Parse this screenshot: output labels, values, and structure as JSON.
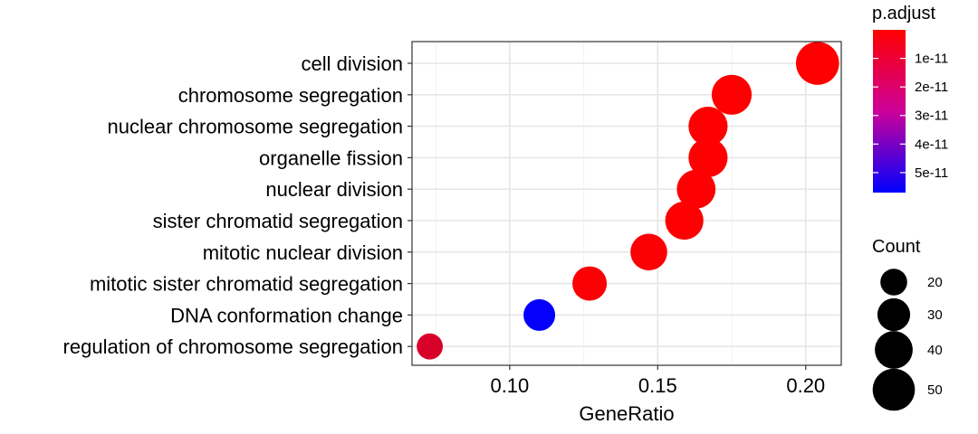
{
  "chart_data": {
    "type": "scatter",
    "title": "",
    "xlabel": "GeneRatio",
    "ylabel": "",
    "xlim": [
      0.067,
      0.212
    ],
    "x_ticks": [
      0.1,
      0.15,
      0.2
    ],
    "x_tick_labels": [
      "0.10",
      "0.15",
      "0.20"
    ],
    "grid": true,
    "categories": [
      "cell division",
      "chromosome segregation",
      "nuclear chromosome segregation",
      "organelle fission",
      "nuclear division",
      "sister chromatid segregation",
      "mitotic nuclear division",
      "mitotic sister chromatid segregation",
      "DNA conformation change",
      "regulation of chromosome segregation"
    ],
    "points": [
      {
        "term": "cell division",
        "gene_ratio": 0.204,
        "count": 52,
        "p_adjust": 1e-13
      },
      {
        "term": "chromosome segregation",
        "gene_ratio": 0.175,
        "count": 45,
        "p_adjust": 2e-13
      },
      {
        "term": "nuclear chromosome segregation",
        "gene_ratio": 0.167,
        "count": 43,
        "p_adjust": 2e-13
      },
      {
        "term": "organelle fission",
        "gene_ratio": 0.167,
        "count": 43,
        "p_adjust": 3e-13
      },
      {
        "term": "nuclear division",
        "gene_ratio": 0.163,
        "count": 42,
        "p_adjust": 3e-13
      },
      {
        "term": "sister chromatid segregation",
        "gene_ratio": 0.159,
        "count": 41,
        "p_adjust": 5e-13
      },
      {
        "term": "mitotic nuclear division",
        "gene_ratio": 0.147,
        "count": 38,
        "p_adjust": 8e-13
      },
      {
        "term": "mitotic sister chromatid segregation",
        "gene_ratio": 0.127,
        "count": 33,
        "p_adjust": 1e-12
      },
      {
        "term": "DNA conformation change",
        "gene_ratio": 0.11,
        "count": 28,
        "p_adjust": 5.6e-11
      },
      {
        "term": "regulation of chromosome segregation",
        "gene_ratio": 0.073,
        "count": 19,
        "p_adjust": 9e-12
      }
    ],
    "color_legend": {
      "title": "p.adjust",
      "low_color": "#ff0000",
      "high_color": "#0000ff",
      "range": [
        0,
        5.7e-11
      ],
      "ticks": [
        1e-11,
        2e-11,
        3e-11,
        4e-11,
        5e-11
      ],
      "tick_labels": [
        "1e-11",
        "2e-11",
        "3e-11",
        "4e-11",
        "5e-11"
      ]
    },
    "size_legend": {
      "title": "Count",
      "values": [
        20,
        30,
        40,
        50
      ],
      "labels": [
        "20",
        "30",
        "40",
        "50"
      ]
    }
  }
}
